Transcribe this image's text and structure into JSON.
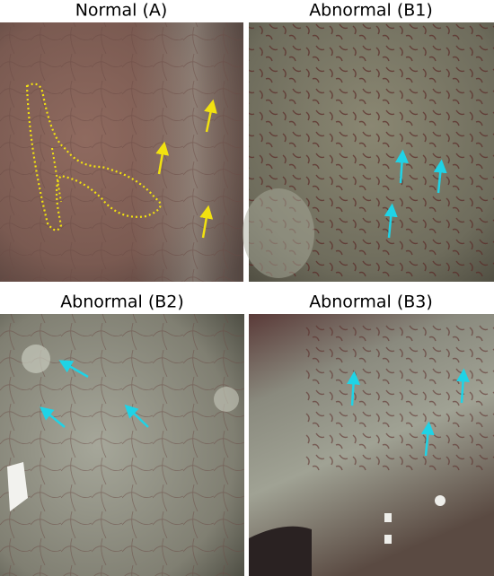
{
  "panels": [
    {
      "title": "Normal (A)"
    },
    {
      "title": "Abnormal (B1)"
    },
    {
      "title": "Abnormal (B2)"
    },
    {
      "title": "Abnormal (B3)"
    }
  ]
}
